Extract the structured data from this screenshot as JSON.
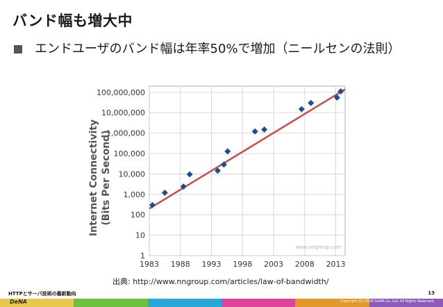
{
  "slide": {
    "title": "バンド幅も増大中",
    "bullet": "エンドユーザのバンド幅は年率50%で増加（ニールセンの法則）",
    "source": "出典: http://www.nngroup.com/articles/law-of-bandwidth/",
    "footer_left": "HTTPとサーバ技術の最新動向",
    "page_number": "13",
    "logo_text": "DeNA",
    "copyright": "Copyright (C) 2016 DeNA Co.,Ltd. All Rights Reserved.",
    "footer_colors": [
      "#e6c84a",
      "#6fbf43",
      "#2aa7d8",
      "#d9469a",
      "#e0982b",
      "#8c5ab8"
    ]
  },
  "chart_data": {
    "type": "scatter",
    "ylabel": "Internet Connectivity (Bits Per Second)",
    "watermark": "www.nngroup.com",
    "x_ticks": [
      1983,
      1988,
      1993,
      1998,
      2003,
      2008,
      2013
    ],
    "y_tick_labels": [
      "1",
      "10",
      "100",
      "1,000",
      "10,000",
      "100,000",
      "1,000,000",
      "10,000,000",
      "100,000,000"
    ],
    "y_scale": "log",
    "xlim": [
      1983,
      2014.5
    ],
    "ylim": [
      1,
      200000000
    ],
    "points": [
      {
        "x": 1983.5,
        "y": 300
      },
      {
        "x": 1985.5,
        "y": 1200
      },
      {
        "x": 1988.5,
        "y": 2400
      },
      {
        "x": 1989.5,
        "y": 9600
      },
      {
        "x": 1994.0,
        "y": 14400
      },
      {
        "x": 1995.0,
        "y": 28800
      },
      {
        "x": 1995.6,
        "y": 128000
      },
      {
        "x": 2000.0,
        "y": 1200000
      },
      {
        "x": 2001.5,
        "y": 1500000
      },
      {
        "x": 2007.5,
        "y": 15000000
      },
      {
        "x": 2009.0,
        "y": 30000000
      },
      {
        "x": 2013.2,
        "y": 55000000
      },
      {
        "x": 2013.8,
        "y": 110000000
      }
    ],
    "trend": {
      "x": [
        1983,
        2014.5
      ],
      "y": [
        200,
        140000000
      ]
    },
    "colors": {
      "points": "#1f4e8c",
      "trend": "#c0504d",
      "grid": "#d0d0d0"
    },
    "grid": true
  }
}
